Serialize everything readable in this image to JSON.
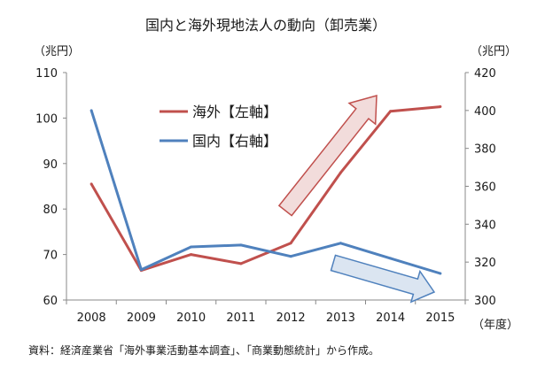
{
  "chart_data": {
    "type": "line",
    "title": "国内と海外現地法人の動向（卸売業）",
    "left_unit": "（兆円）",
    "right_unit": "（兆円）",
    "x_unit": "（年度）",
    "x": [
      "2008",
      "2009",
      "2010",
      "2011",
      "2012",
      "2013",
      "2014",
      "2015"
    ],
    "left_axis": {
      "min": 60,
      "max": 110,
      "ticks": [
        60,
        70,
        80,
        90,
        100,
        110
      ]
    },
    "right_axis": {
      "min": 300,
      "max": 420,
      "ticks": [
        300,
        320,
        340,
        360,
        380,
        400,
        420
      ]
    },
    "series": [
      {
        "name": "海外【左軸】",
        "axis": "left",
        "color": "#c0504d",
        "values": [
          85.5,
          66.5,
          70.0,
          68.0,
          72.5,
          88.0,
          101.5,
          102.5
        ]
      },
      {
        "name": "国内【右軸】",
        "axis": "right",
        "color": "#4f81bd",
        "values": [
          400,
          316,
          328,
          329,
          323,
          330,
          322,
          314
        ]
      }
    ],
    "grid": false,
    "legend_position": "top-center",
    "source": "資料：経済産業省「海外事業活動基本調査」、「商業動態統計」から作成。",
    "arrows": [
      {
        "direction": "up",
        "fill": "#f2dcdb",
        "stroke": "#c0504d"
      },
      {
        "direction": "down",
        "fill": "#dbe5f1",
        "stroke": "#4f81bd"
      }
    ]
  }
}
